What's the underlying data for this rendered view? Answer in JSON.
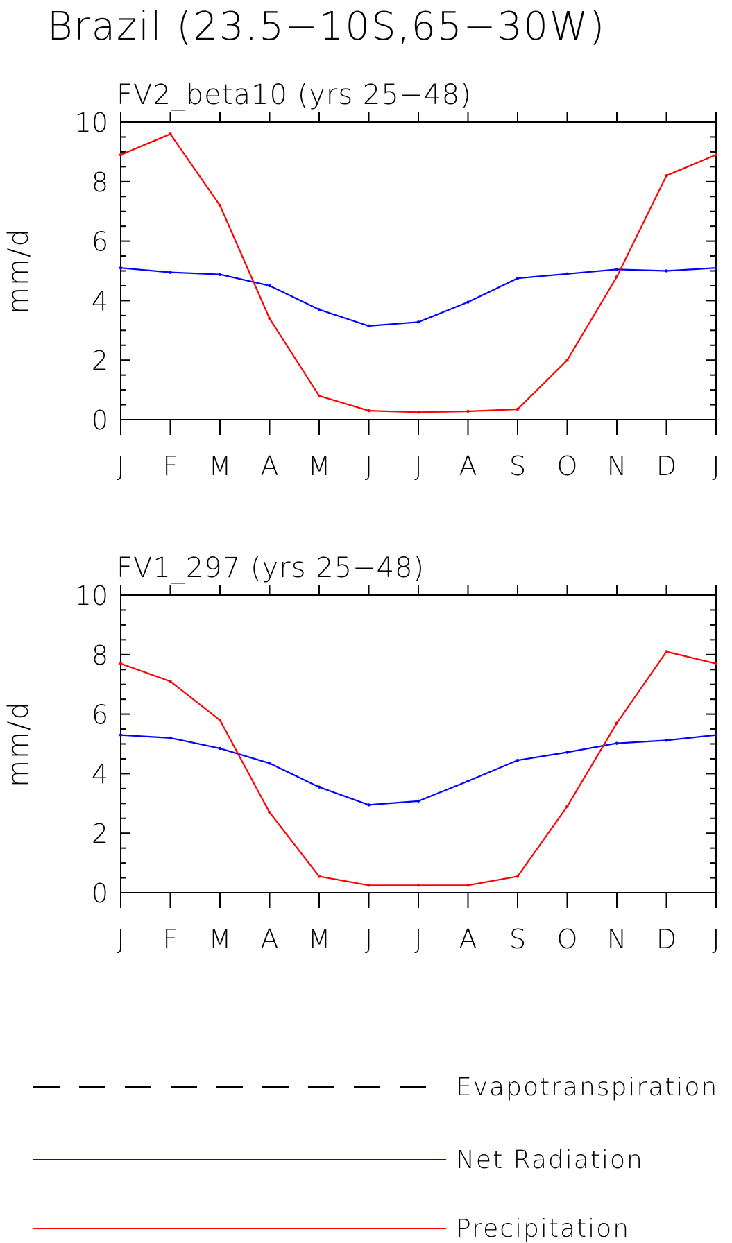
{
  "chart_data": {
    "type": "line",
    "title": "Brazil (23.5−10S,65−30W)",
    "categories": [
      "J",
      "F",
      "M",
      "A",
      "M",
      "J",
      "J",
      "A",
      "S",
      "O",
      "N",
      "D",
      "J"
    ],
    "ylabel": "mm/d",
    "ylim": [
      0,
      10
    ],
    "yticks": [
      0,
      2,
      4,
      6,
      8,
      10
    ],
    "ytick_labels": [
      "0",
      "2",
      "4",
      "6",
      "8",
      "10"
    ],
    "panels": [
      {
        "subtitle": "FV2_beta10 (yrs 25−48)",
        "series": [
          {
            "name": "Net Radiation",
            "color": "#0000ff",
            "values": [
              5.1,
              4.95,
              4.88,
              4.5,
              3.7,
              3.15,
              3.28,
              3.95,
              4.75,
              4.9,
              5.05,
              5.0,
              5.1
            ]
          },
          {
            "name": "Precipitation",
            "color": "#ff0000",
            "values": [
              8.9,
              9.6,
              7.2,
              3.4,
              0.8,
              0.3,
              0.25,
              0.28,
              0.35,
              2.0,
              4.8,
              8.2,
              8.9
            ]
          }
        ]
      },
      {
        "subtitle": "FV1_297 (yrs 25−48)",
        "series": [
          {
            "name": "Net Radiation",
            "color": "#0000ff",
            "values": [
              5.3,
              5.2,
              4.85,
              4.35,
              3.55,
              2.95,
              3.08,
              3.75,
              4.45,
              4.72,
              5.02,
              5.12,
              5.3
            ]
          },
          {
            "name": "Precipitation",
            "color": "#ff0000",
            "values": [
              7.7,
              7.1,
              5.8,
              2.7,
              0.55,
              0.25,
              0.25,
              0.25,
              0.55,
              2.9,
              5.7,
              8.1,
              7.7
            ]
          }
        ]
      }
    ],
    "legend": [
      {
        "name": "Evapotranspiration",
        "color": "#000000",
        "style": "dashed"
      },
      {
        "name": "Net Radiation",
        "color": "#0000ff",
        "style": "solid"
      },
      {
        "name": "Precipitation",
        "color": "#ff0000",
        "style": "solid"
      }
    ]
  }
}
